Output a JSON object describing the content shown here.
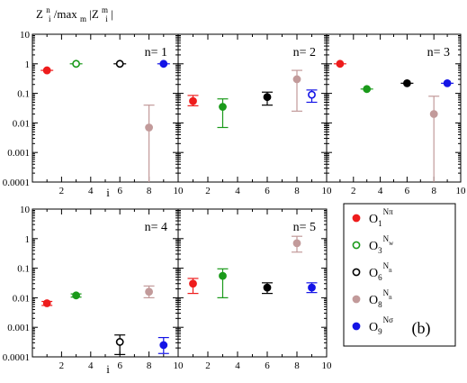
{
  "chart_data": {
    "type": "scatter",
    "y_scale": "log",
    "title": {
      "base": "Z",
      "sup1": "n",
      "sub1": "i",
      "mid": "/max",
      "sub2": "m",
      "mid2": "|Z",
      "sup2": "m",
      "sub3": "i",
      "end": "|"
    },
    "xlabel": "i",
    "xlim": [
      0,
      10
    ],
    "ylim": [
      0.0001,
      10
    ],
    "x_ticks": [
      2,
      4,
      6,
      8,
      10
    ],
    "x_tick_labels": [
      "2",
      "4",
      "6",
      "8",
      "10"
    ],
    "y_ticks": [
      0.0001,
      0.001,
      0.01,
      0.1,
      1,
      10
    ],
    "y_tick_labels": [
      "0.0001",
      "0.001",
      "0.01",
      "0.1",
      "1",
      "10"
    ],
    "figure_tag": "(b)",
    "series_styles": [
      {
        "key": "O1",
        "color": "#ee1c1c",
        "filled": true,
        "label_base": "O",
        "label_sub": "1",
        "label_sup": "Nπ",
        "label_sup_sub": ""
      },
      {
        "key": "O3",
        "color": "#1a9a1a",
        "filled": false,
        "label_base": "O",
        "label_sub": "3",
        "label_sup": "N",
        "label_sup_sub": "w"
      },
      {
        "key": "O6",
        "color": "#000000",
        "filled": false,
        "label_base": "O",
        "label_sub": "6",
        "label_sup": "N",
        "label_sup_sub": "n"
      },
      {
        "key": "O8",
        "color": "#c29a9a",
        "filled": true,
        "label_base": "O",
        "label_sub": "8",
        "label_sup": "N",
        "label_sup_sub": "n"
      },
      {
        "key": "O9",
        "color": "#1414e6",
        "filled": true,
        "label_base": "O",
        "label_sub": "9",
        "label_sup": "Nσ",
        "label_sup_sub": ""
      }
    ],
    "panels": [
      {
        "label": "n= 1",
        "points": [
          {
            "series": "O1",
            "x": 1,
            "y": 0.6,
            "lo": 0.6,
            "hi": 0.6,
            "filled": true
          },
          {
            "series": "O3",
            "x": 3,
            "y": 1.0,
            "lo": 1.0,
            "hi": 1.0,
            "filled": false
          },
          {
            "series": "O6",
            "x": 6,
            "y": 1.0,
            "lo": 1.0,
            "hi": 1.0,
            "filled": false
          },
          {
            "series": "O8",
            "x": 8,
            "y": 0.007,
            "lo": 0.0001,
            "hi": 0.04,
            "filled": true
          },
          {
            "series": "O9",
            "x": 9,
            "y": 1.0,
            "lo": 1.0,
            "hi": 1.0,
            "filled": true
          }
        ]
      },
      {
        "label": "n= 2",
        "points": [
          {
            "series": "O1",
            "x": 1,
            "y": 0.055,
            "lo": 0.038,
            "hi": 0.085,
            "filled": true
          },
          {
            "series": "O3",
            "x": 3,
            "y": 0.035,
            "lo": 0.007,
            "hi": 0.065,
            "filled": true
          },
          {
            "series": "O6",
            "x": 6,
            "y": 0.075,
            "lo": 0.04,
            "hi": 0.11,
            "filled": true
          },
          {
            "series": "O8",
            "x": 8,
            "y": 0.3,
            "lo": 0.025,
            "hi": 0.6,
            "filled": true
          },
          {
            "series": "O9",
            "x": 9,
            "y": 0.09,
            "lo": 0.05,
            "hi": 0.13,
            "filled": false
          }
        ]
      },
      {
        "label": "n= 3",
        "points": [
          {
            "series": "O1",
            "x": 1,
            "y": 1.0,
            "lo": 1.0,
            "hi": 1.0,
            "filled": true
          },
          {
            "series": "O3",
            "x": 3,
            "y": 0.14,
            "lo": 0.14,
            "hi": 0.14,
            "filled": true
          },
          {
            "series": "O6",
            "x": 6,
            "y": 0.22,
            "lo": 0.22,
            "hi": 0.22,
            "filled": true
          },
          {
            "series": "O8",
            "x": 8,
            "y": 0.02,
            "lo": 0.0001,
            "hi": 0.08,
            "filled": true
          },
          {
            "series": "O9",
            "x": 9,
            "y": 0.22,
            "lo": 0.22,
            "hi": 0.22,
            "filled": true
          }
        ]
      },
      {
        "label": "n= 4",
        "points": [
          {
            "series": "O1",
            "x": 1,
            "y": 0.0065,
            "lo": 0.0055,
            "hi": 0.0075,
            "filled": true
          },
          {
            "series": "O3",
            "x": 3,
            "y": 0.012,
            "lo": 0.0105,
            "hi": 0.0135,
            "filled": true
          },
          {
            "series": "O6",
            "x": 6,
            "y": 0.00032,
            "lo": 0.00012,
            "hi": 0.00055,
            "filled": false
          },
          {
            "series": "O8",
            "x": 8,
            "y": 0.016,
            "lo": 0.01,
            "hi": 0.025,
            "filled": true
          },
          {
            "series": "O9",
            "x": 9,
            "y": 0.00025,
            "lo": 0.00013,
            "hi": 0.00045,
            "filled": true
          }
        ]
      },
      {
        "label": "n= 5",
        "points": [
          {
            "series": "O1",
            "x": 1,
            "y": 0.03,
            "lo": 0.014,
            "hi": 0.045,
            "filled": true
          },
          {
            "series": "O3",
            "x": 3,
            "y": 0.055,
            "lo": 0.01,
            "hi": 0.095,
            "filled": true
          },
          {
            "series": "O6",
            "x": 6,
            "y": 0.022,
            "lo": 0.014,
            "hi": 0.032,
            "filled": true
          },
          {
            "series": "O8",
            "x": 8,
            "y": 0.7,
            "lo": 0.35,
            "hi": 1.2,
            "filled": true
          },
          {
            "series": "O9",
            "x": 9,
            "y": 0.022,
            "lo": 0.015,
            "hi": 0.032,
            "filled": true
          }
        ]
      }
    ]
  }
}
